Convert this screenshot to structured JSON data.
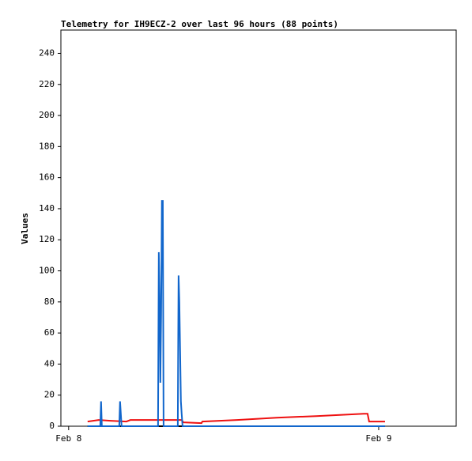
{
  "chart_data": {
    "type": "line",
    "title": "Telemetry for IH9ECZ-2 over last 96 hours (88 points)",
    "y_label": "Values",
    "xlim": [
      -0.6,
      30
    ],
    "xticks": [
      {
        "value": 0,
        "label": "Feb 8"
      },
      {
        "value": 24,
        "label": "Feb 9"
      }
    ],
    "ylim": [
      0,
      255
    ],
    "yticks": [
      0,
      20,
      40,
      60,
      80,
      100,
      120,
      140,
      160,
      180,
      200,
      220,
      240
    ],
    "series": [
      {
        "color": "#000000",
        "x": [
          1.47,
          24.49
        ],
        "values": [
          0,
          0
        ]
      },
      {
        "color": "#ee1111",
        "x": [
          1.47,
          2.33,
          3.24,
          4.47,
          4.78,
          8.75,
          8.88,
          10.29,
          10.35,
          13.04,
          16.1,
          19.16,
          22.84,
          23.14,
          23.26,
          24.49
        ],
        "values": [
          3,
          4,
          3.5,
          3,
          4,
          4,
          2.5,
          2,
          3,
          4,
          5.5,
          6.5,
          8,
          8,
          3,
          3
        ]
      },
      {
        "color": "#1166cc",
        "x": [
          1.47,
          2.45,
          2.51,
          2.57,
          3.92,
          3.98,
          4.04,
          4.1,
          6.92,
          6.98,
          7.04,
          7.1,
          7.16,
          7.22,
          7.29,
          7.35,
          8.45,
          8.51,
          8.57,
          8.63,
          8.69,
          8.75,
          8.82,
          24.49
        ],
        "values": [
          0,
          0,
          16,
          0,
          0,
          16,
          8,
          0,
          0,
          112,
          84,
          28,
          72,
          145,
          145,
          0,
          0,
          97,
          80,
          48,
          16,
          8,
          0,
          0
        ]
      }
    ]
  }
}
